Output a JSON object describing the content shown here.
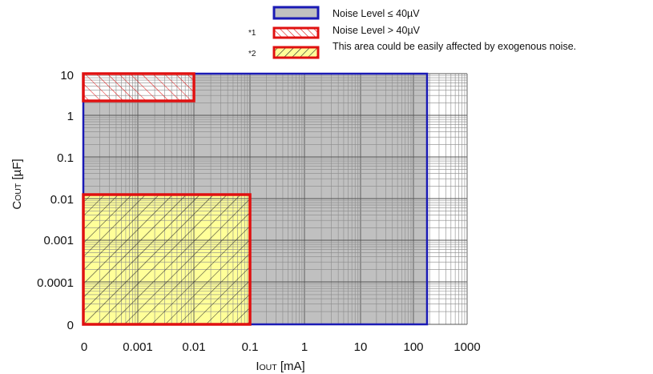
{
  "chart_data": {
    "type": "area",
    "xlabel": "I",
    "xlabel_sub": "OUT",
    "xlabel_unit": " [mA]",
    "ylabel": "C",
    "ylabel_sub": "OUT",
    "ylabel_unit": " [µF]",
    "x_ticks": [
      "0",
      "0.001",
      "0.01",
      "0.1",
      "1",
      "10",
      "100",
      "1000"
    ],
    "y_ticks": [
      "0",
      "0.0001",
      "0.001",
      "0.01",
      "0.1",
      "1",
      "10"
    ],
    "x_scale": "log",
    "y_scale": "log",
    "grid": true,
    "legend_position": "top-right",
    "legend": [
      {
        "mark": "",
        "label": "Noise Level ≤ 40µV",
        "fill": "#c0c0c0",
        "border": "#1a1ab5",
        "pattern": "none"
      },
      {
        "mark": "*1",
        "label": "Noise Level > 40µV",
        "fill": "#ffffff",
        "border": "#e01010",
        "pattern": "hatch-red"
      },
      {
        "mark": "*2",
        "label": "This area could be easily affected by exogenous noise.",
        "fill": "#ffff99",
        "border": "#e01010",
        "pattern": "hatch-black"
      }
    ],
    "regions": [
      {
        "name": "Noise Level ≤ 40µV",
        "x_range": [
          "0",
          "180"
        ],
        "y_range": [
          "0",
          "10"
        ],
        "fill": "#c0c0c0",
        "border": "#1a1ab5"
      },
      {
        "name": "Noise Level > 40µV",
        "x_range": [
          "0",
          "0.01"
        ],
        "y_range": [
          "2.2",
          "10"
        ],
        "fill": "#ffffff",
        "border": "#e01010"
      },
      {
        "name": "This area could be easily affected by exogenous noise.",
        "x_range": [
          "0",
          "0.1"
        ],
        "y_range": [
          "0",
          "0.013"
        ],
        "fill": "#ffff99",
        "border": "#e01010"
      }
    ]
  }
}
